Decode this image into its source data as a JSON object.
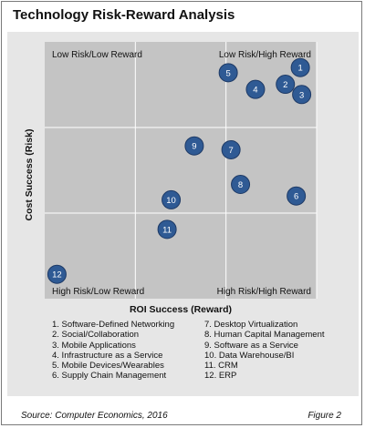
{
  "title": "Technology Risk-Reward Analysis",
  "chart_data": {
    "type": "scatter",
    "title": "Technology Risk-Reward Analysis",
    "xlabel": "ROI Success (Reward)",
    "ylabel": "Cost Success (Risk)",
    "grid": true,
    "quadrants": {
      "top_left": "Low Risk/Low Reward",
      "top_right": "Low Risk/High Reward",
      "bottom_left": "High Risk/Low Reward",
      "bottom_right": "High Risk/High Reward"
    },
    "points": [
      {
        "id": "1",
        "name": "Software-Defined Networking",
        "x": 0.94,
        "y": 0.9
      },
      {
        "id": "2",
        "name": "Social/Collaboration",
        "x": 0.885,
        "y": 0.835
      },
      {
        "id": "3",
        "name": "Mobile Applications",
        "x": 0.945,
        "y": 0.795
      },
      {
        "id": "4",
        "name": "Infrastructure as a Service",
        "x": 0.775,
        "y": 0.815
      },
      {
        "id": "5",
        "name": "Mobile Devices/Wearables",
        "x": 0.675,
        "y": 0.88
      },
      {
        "id": "6",
        "name": "Supply Chain Management",
        "x": 0.925,
        "y": 0.4
      },
      {
        "id": "7",
        "name": "Desktop Virtualization",
        "x": 0.685,
        "y": 0.58
      },
      {
        "id": "8",
        "name": "Human Capital Management",
        "x": 0.72,
        "y": 0.445
      },
      {
        "id": "9",
        "name": "Software as a Service",
        "x": 0.55,
        "y": 0.595
      },
      {
        "id": "10",
        "name": "Data Warehouse/BI",
        "x": 0.465,
        "y": 0.385
      },
      {
        "id": "11",
        "name": "CRM",
        "x": 0.45,
        "y": 0.27
      },
      {
        "id": "12",
        "name": "ERP",
        "x": 0.045,
        "y": 0.095
      }
    ]
  },
  "legend": {
    "col1": [
      "1. Software-Defined Networking",
      "2. Social/Collaboration",
      "3. Mobile Applications",
      "4. Infrastructure as a Service",
      "5. Mobile Devices/Wearables",
      "6. Supply Chain Management"
    ],
    "col2": [
      "7. Desktop Virtualization",
      "8. Human Capital Management",
      "9. Software as a Service",
      "10. Data Warehouse/BI",
      "11. CRM",
      "12. ERP"
    ]
  },
  "footer": {
    "source": "Source: Computer Economics, 2016",
    "figure": "Figure 2"
  },
  "colors": {
    "panel": "#e6e6e6",
    "plot": "#c4c4c4",
    "grid": "#ffffff",
    "bubble": "#2f5a94",
    "bubble_stroke": "#1e3a66",
    "bubble_text": "#ffffff"
  }
}
